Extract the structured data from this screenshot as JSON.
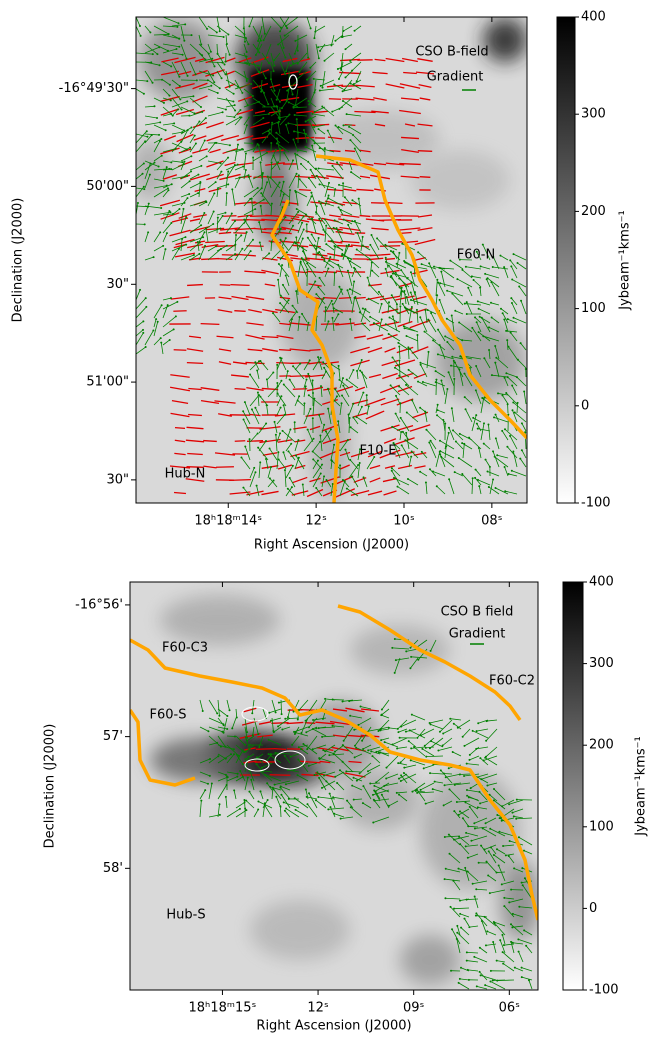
{
  "chart_data": [
    {
      "type": "image",
      "xlabel": "Right Ascension (J2000)",
      "ylabel": "Declination (J2000)",
      "xlim": [
        16.1,
        7.2
      ],
      "xticks": [
        {
          "value": 14,
          "label": "18ʰ18ᵐ14ˢ"
        },
        {
          "value": 12,
          "label": "12ˢ"
        },
        {
          "value": 10,
          "label": "10ˢ"
        },
        {
          "value": 8,
          "label": "08ˢ"
        }
      ],
      "ylim": [
        -16.8189,
        -16.8603
      ],
      "yticks": [
        {
          "value": -16.825,
          "label": "-16°49'30\""
        },
        {
          "value": -16.83333,
          "label": "50'00\""
        },
        {
          "value": -16.84167,
          "label": "30\""
        },
        {
          "value": -16.85,
          "label": "51'00\""
        },
        {
          "value": -16.85833,
          "label": "30\""
        }
      ],
      "colorbar": {
        "label": "Jybeam⁻¹kms⁻¹",
        "lim": [
          -100,
          400
        ],
        "ticks": [
          -100,
          0,
          100,
          200,
          300,
          400
        ],
        "cmap": "gray_r"
      },
      "legend": [
        {
          "name": "CSO B-field",
          "color": "#e00000"
        },
        {
          "name": "Gradient",
          "color": "#008000"
        }
      ],
      "annotations": [
        "F60-N",
        "F10-E",
        "Hub-N"
      ]
    },
    {
      "type": "image",
      "xlabel": "Right Ascension (J2000)",
      "ylabel": "Declination (J2000)",
      "xlim": [
        17.9,
        5.1
      ],
      "xticks": [
        {
          "value": 15,
          "label": "18ʰ18ᵐ15ˢ"
        },
        {
          "value": 12,
          "label": "12ˢ"
        },
        {
          "value": 9,
          "label": "09ˢ"
        },
        {
          "value": 6,
          "label": "06ˢ"
        }
      ],
      "ylim": [
        -16.93043,
        -16.98207
      ],
      "yticks": [
        {
          "value": -16.93333,
          "label": "-16°56'"
        },
        {
          "value": -16.95,
          "label": "57'"
        },
        {
          "value": -16.96667,
          "label": "58'"
        }
      ],
      "colorbar": {
        "label": "Jybeam⁻¹kms⁻¹",
        "lim": [
          -100,
          400
        ],
        "ticks": [
          -100,
          0,
          100,
          200,
          300,
          400
        ],
        "cmap": "gray_r"
      },
      "legend": [
        {
          "name": "CSO B field",
          "color": "#e00000"
        },
        {
          "name": "Gradient",
          "color": "#008000"
        }
      ],
      "annotations": [
        "F60-C3",
        "F60-C2",
        "F60-S",
        "Hub-S"
      ]
    }
  ]
}
